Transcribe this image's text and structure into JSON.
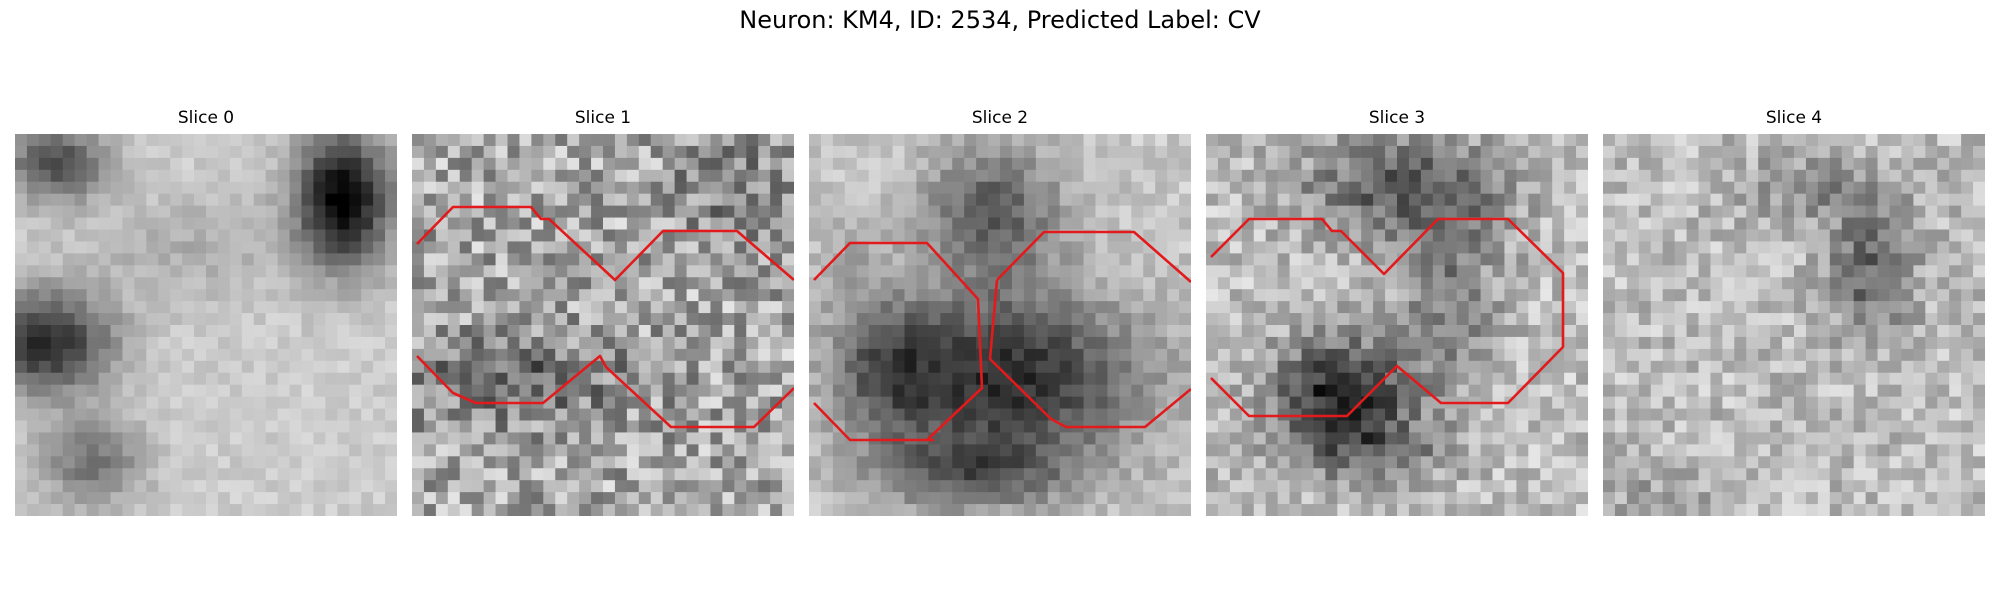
{
  "figure": {
    "title": "Neuron: KM4, ID: 2534, Predicted Label: CV"
  },
  "panels": [
    {
      "title": "Slice 0",
      "has_contour": false
    },
    {
      "title": "Slice 1",
      "has_contour": true
    },
    {
      "title": "Slice 2",
      "has_contour": true
    },
    {
      "title": "Slice 3",
      "has_contour": true
    },
    {
      "title": "Slice 4",
      "has_contour": false
    }
  ],
  "image_grid_size": 32,
  "colors": {
    "contour": "#e31a1c",
    "colormap": "gray"
  }
}
